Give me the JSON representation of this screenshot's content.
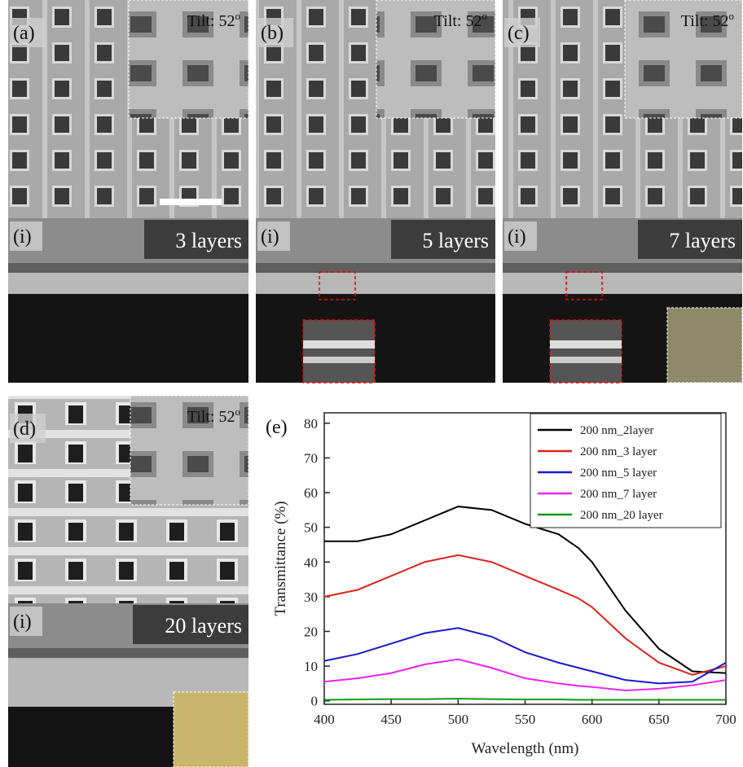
{
  "panels": [
    {
      "label": "(a)",
      "tilt": "Tilt: 52",
      "tilt_sup": "o",
      "sub_label": "(i)",
      "layers": "3 layers"
    },
    {
      "label": "(b)",
      "tilt": "Tilt: 52",
      "tilt_sup": "o",
      "sub_label": "(i)",
      "layers": "5 layers"
    },
    {
      "label": "(c)",
      "tilt": "Tilt: 52",
      "tilt_sup": "o",
      "sub_label": "(i)",
      "layers": "7 layers"
    },
    {
      "label": "(d)",
      "tilt": "Tilt: 52",
      "tilt_sup": "o",
      "sub_label": "(i)",
      "layers": "20 layers"
    }
  ],
  "chart_data": {
    "type": "line",
    "label": "(e)",
    "x_label": "Wavelength (nm)",
    "y_label": "Transmittance (%)",
    "x": [
      400,
      425,
      450,
      475,
      500,
      525,
      550,
      575,
      590,
      600,
      625,
      650,
      675,
      700
    ],
    "series": [
      {
        "name": "200 nm_2layer",
        "color": "#000000",
        "values": [
          46,
          46,
          48,
          52,
          56,
          55,
          51,
          48,
          44,
          40,
          26,
          15,
          8.5,
          8
        ]
      },
      {
        "name": "200 nm_3 layer",
        "color": "#e0241b",
        "values": [
          30,
          32,
          36,
          40,
          42,
          40,
          36,
          32,
          29.5,
          27,
          18,
          11,
          7.5,
          10
        ]
      },
      {
        "name": "200 nm_5 layer",
        "color": "#1a1ad0",
        "values": [
          11.5,
          13.5,
          16.5,
          19.5,
          21,
          18.5,
          14,
          11,
          9.5,
          8.5,
          6,
          5,
          5.5,
          11
        ]
      },
      {
        "name": "200 nm_7 layer",
        "color": "#ee22ee",
        "values": [
          5.5,
          6.5,
          8,
          10.5,
          12,
          9.5,
          6.5,
          5,
          4.3,
          4,
          3,
          3.5,
          4.5,
          6
        ]
      },
      {
        "name": "200 nm_20 layer",
        "color": "#129a12",
        "values": [
          0.3,
          0.4,
          0.5,
          0.5,
          0.6,
          0.5,
          0.4,
          0.4,
          0.3,
          0.3,
          0.3,
          0.3,
          0.3,
          0.3
        ]
      }
    ],
    "xlim": [
      400,
      700
    ],
    "xticks": [
      400,
      450,
      500,
      550,
      600,
      650,
      700
    ],
    "ylim": [
      -1,
      83
    ],
    "yticks": [
      0,
      10,
      20,
      30,
      40,
      50,
      60,
      70,
      80
    ]
  }
}
